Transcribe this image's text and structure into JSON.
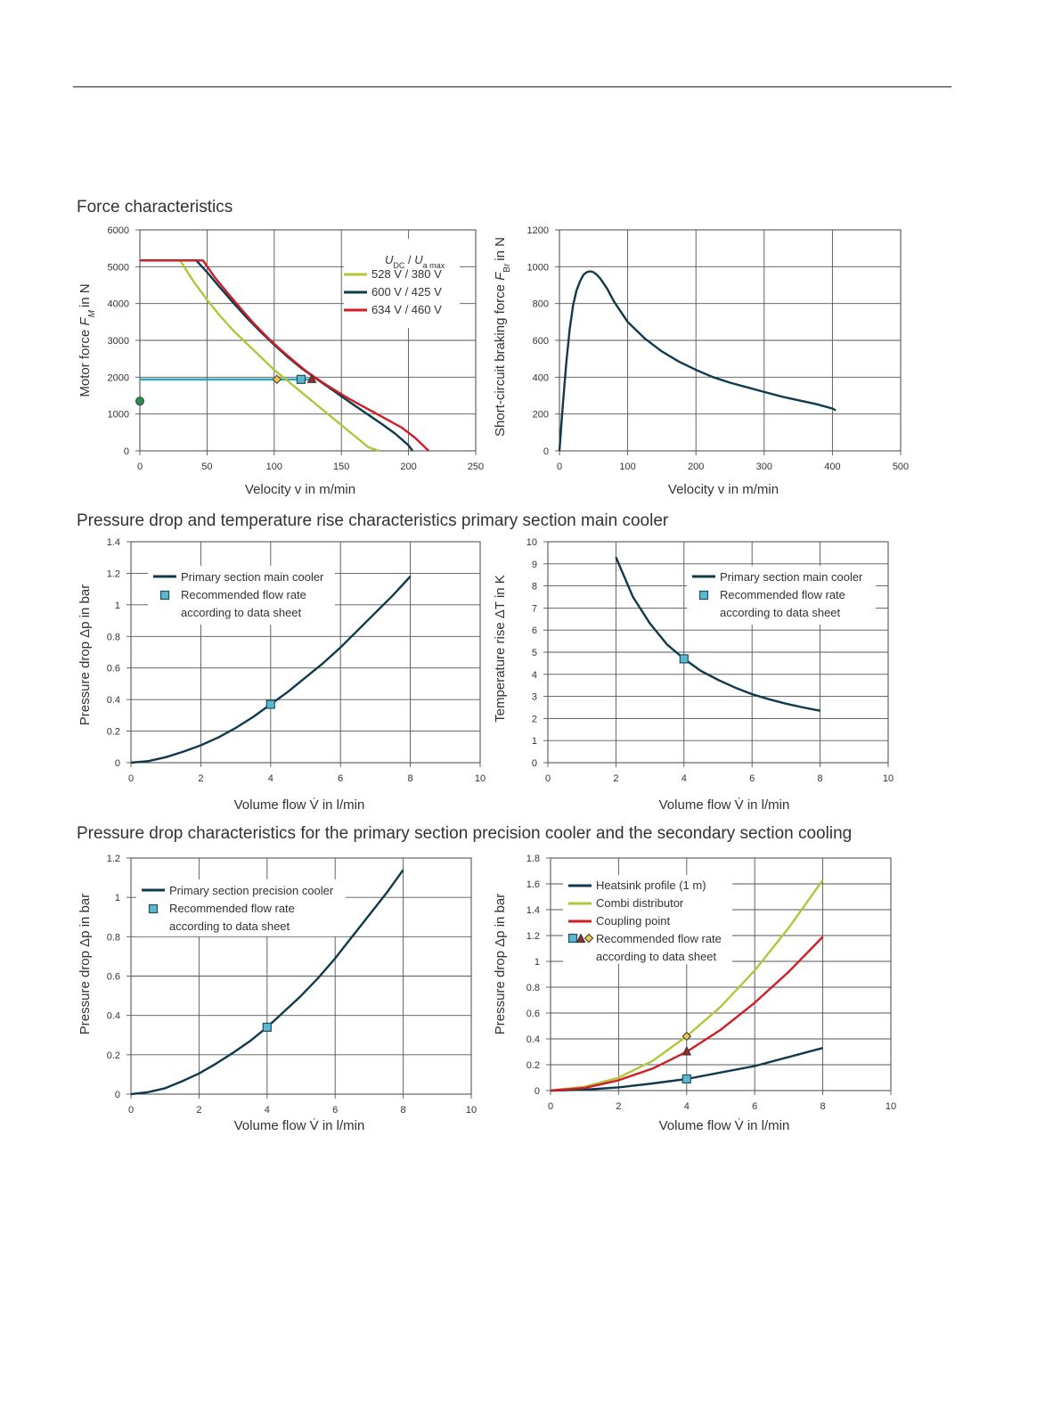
{
  "sections": {
    "force": "Force characteristics",
    "pressure_main": "Pressure drop and temperature rise characteristics primary section main cooler",
    "pressure_precision": "Pressure drop characteristics for the primary section precision cooler and the secondary section cooling"
  },
  "chart_data": [
    {
      "id": "motor-force",
      "type": "line",
      "xlabel": "Velocity v in m/min",
      "ylabel": "Motor force F_M in N",
      "xlim": [
        0,
        250
      ],
      "ylim": [
        0,
        6000
      ],
      "xticks": [
        "0",
        "50",
        "100",
        "150",
        "200",
        "250"
      ],
      "yticks": [
        "0",
        "1000",
        "2000",
        "3000",
        "4000",
        "5000",
        "6000"
      ],
      "grid": true,
      "legend_title": "U_DC / U_a max",
      "legend_position": "top-right",
      "series": [
        {
          "name": "528 V / 380 V",
          "color": "#b5c43c",
          "x": [
            0,
            30,
            40,
            50,
            60,
            70,
            80,
            90,
            100,
            110,
            120,
            130,
            140,
            150,
            160,
            170,
            178
          ],
          "y": [
            5170,
            5170,
            4600,
            4100,
            3650,
            3250,
            2900,
            2550,
            2200,
            1900,
            1600,
            1300,
            1000,
            700,
            400,
            100,
            0
          ],
          "marker": {
            "x": 102,
            "y": 1940,
            "shape": "diamond"
          }
        },
        {
          "name": "600 V / 425 V",
          "color": "#0f3a4e",
          "x": [
            0,
            42,
            50,
            60,
            70,
            80,
            90,
            100,
            110,
            120,
            130,
            140,
            150,
            160,
            170,
            180,
            190,
            200,
            203
          ],
          "y": [
            5170,
            5170,
            4850,
            4420,
            4000,
            3600,
            3230,
            2880,
            2550,
            2250,
            1990,
            1740,
            1480,
            1230,
            980,
            730,
            470,
            150,
            0
          ],
          "marker": {
            "x": 120,
            "y": 1940,
            "shape": "square"
          }
        },
        {
          "name": "634 V / 460 V",
          "color": "#d01c24",
          "x": [
            0,
            47,
            55,
            65,
            75,
            85,
            95,
            105,
            115,
            125,
            135,
            145,
            155,
            165,
            175,
            185,
            195,
            205,
            215
          ],
          "y": [
            5170,
            5170,
            4750,
            4300,
            3870,
            3450,
            3080,
            2740,
            2430,
            2130,
            1880,
            1650,
            1430,
            1230,
            1030,
            830,
            630,
            350,
            0
          ],
          "marker": {
            "x": 128,
            "y": 1940,
            "shape": "triangle"
          }
        }
      ],
      "annotations": [
        {
          "type": "hline",
          "y": 1940,
          "x_to": 128,
          "color": "#2aa8b8"
        },
        {
          "type": "point",
          "x": 0,
          "y": 1350,
          "color": "#2e8b4e"
        }
      ]
    },
    {
      "id": "braking-force",
      "type": "line",
      "xlabel": "Velocity v in m/min",
      "ylabel": "Short-circuit braking force F_Br in N",
      "xlim": [
        0,
        500
      ],
      "ylim": [
        0,
        1200
      ],
      "xticks": [
        "0",
        "100",
        "200",
        "300",
        "400",
        "500"
      ],
      "yticks": [
        "0",
        "200",
        "400",
        "600",
        "800",
        "1000",
        "1200"
      ],
      "grid": true,
      "series": [
        {
          "name": "",
          "color": "#0f3a4e",
          "x": [
            0,
            5,
            10,
            15,
            20,
            25,
            30,
            35,
            40,
            45,
            50,
            55,
            60,
            70,
            80,
            100,
            125,
            150,
            175,
            200,
            225,
            250,
            275,
            300,
            325,
            350,
            375,
            400,
            405
          ],
          "y": [
            0,
            250,
            480,
            660,
            790,
            870,
            920,
            955,
            970,
            975,
            970,
            955,
            935,
            880,
            810,
            700,
            610,
            540,
            485,
            440,
            400,
            370,
            345,
            320,
            295,
            275,
            255,
            230,
            220
          ]
        }
      ]
    },
    {
      "id": "pressure-main",
      "type": "line",
      "xlabel": "Volume flow V̇ in l/min",
      "ylabel": "Pressure drop Δp in bar",
      "xlim": [
        0,
        10
      ],
      "ylim": [
        0,
        1.4
      ],
      "xticks": [
        "0",
        "2",
        "4",
        "6",
        "8",
        "10"
      ],
      "yticks": [
        "0",
        "0.2",
        "0.4",
        "0.6",
        "0.8",
        "1",
        "1.2",
        "1.4"
      ],
      "grid": true,
      "legend": [
        "Primary section main cooler",
        "Recommended flow rate",
        "according to data sheet"
      ],
      "series": [
        {
          "name": "Primary section main cooler",
          "color": "#0f3a4e",
          "x": [
            0,
            0.5,
            1,
            1.5,
            2,
            2.5,
            3,
            3.5,
            4,
            4.5,
            5,
            5.5,
            6,
            6.5,
            7,
            7.5,
            8
          ],
          "y": [
            0,
            0.01,
            0.035,
            0.07,
            0.11,
            0.16,
            0.22,
            0.29,
            0.37,
            0.45,
            0.54,
            0.63,
            0.73,
            0.84,
            0.95,
            1.06,
            1.18
          ],
          "marker": {
            "x": 4,
            "y": 0.37,
            "shape": "square"
          }
        }
      ]
    },
    {
      "id": "temperature-main",
      "type": "line",
      "xlabel": "Volume flow V̇ in l/min",
      "ylabel": "Temperature rise ΔT in K",
      "xlim": [
        0,
        10
      ],
      "ylim": [
        0,
        10
      ],
      "xticks": [
        "0",
        "2",
        "4",
        "6",
        "8",
        "10"
      ],
      "yticks": [
        "0",
        "1",
        "2",
        "3",
        "4",
        "5",
        "6",
        "7",
        "8",
        "9",
        "10"
      ],
      "grid": true,
      "legend": [
        "Primary section main cooler",
        "Recommended flow rate",
        "according to data sheet"
      ],
      "series": [
        {
          "name": "Primary section main cooler",
          "color": "#0f3a4e",
          "x": [
            2,
            2.5,
            3,
            3.5,
            4,
            4.5,
            5,
            5.5,
            6,
            6.5,
            7,
            7.5,
            8
          ],
          "y": [
            9.3,
            7.5,
            6.3,
            5.35,
            4.7,
            4.15,
            3.75,
            3.4,
            3.1,
            2.87,
            2.67,
            2.5,
            2.35
          ],
          "marker": {
            "x": 4,
            "y": 4.7,
            "shape": "square"
          }
        }
      ]
    },
    {
      "id": "pressure-precision",
      "type": "line",
      "xlabel": "Volume flow V̇ in l/min",
      "ylabel": "Pressure drop Δp in bar",
      "xlim": [
        0,
        10
      ],
      "ylim": [
        0,
        1.2
      ],
      "xticks": [
        "0",
        "2",
        "4",
        "6",
        "8",
        "10"
      ],
      "yticks": [
        "0",
        "0.2",
        "0.4",
        "0.6",
        "0.8",
        "1",
        "1.2"
      ],
      "grid": true,
      "legend": [
        "Primary section precision cooler",
        "Recommended flow rate",
        "according to data sheet"
      ],
      "series": [
        {
          "name": "Primary section precision cooler",
          "color": "#0f3a4e",
          "x": [
            0,
            0.5,
            1,
            1.5,
            2,
            2.5,
            3,
            3.5,
            4,
            4.5,
            5,
            5.5,
            6,
            6.5,
            7,
            7.5,
            8
          ],
          "y": [
            0,
            0.01,
            0.03,
            0.065,
            0.105,
            0.155,
            0.21,
            0.27,
            0.34,
            0.42,
            0.5,
            0.59,
            0.69,
            0.8,
            0.91,
            1.02,
            1.14
          ],
          "marker": {
            "x": 4,
            "y": 0.34,
            "shape": "square"
          }
        }
      ]
    },
    {
      "id": "pressure-secondary",
      "type": "line",
      "xlabel": "Volume flow V̇ in l/min",
      "ylabel": "Pressure drop Δp in bar",
      "xlim": [
        0,
        10
      ],
      "ylim": [
        0,
        1.8
      ],
      "xticks": [
        "0",
        "2",
        "4",
        "6",
        "8",
        "10"
      ],
      "yticks": [
        "0",
        "0.2",
        "0.4",
        "0.6",
        "0.8",
        "1",
        "1.2",
        "1.4",
        "1.6",
        "1.8"
      ],
      "grid": true,
      "legend": [
        "Heatsink profile (1 m)",
        "Combi distributor",
        "Coupling point",
        "Recommended flow rate",
        "according to data sheet"
      ],
      "series": [
        {
          "name": "Heatsink profile (1 m)",
          "color": "#0f3a4e",
          "x": [
            0,
            1,
            2,
            3,
            4,
            5,
            6,
            7,
            8
          ],
          "y": [
            0,
            0.007,
            0.025,
            0.055,
            0.09,
            0.14,
            0.19,
            0.26,
            0.33
          ],
          "marker": {
            "x": 4,
            "y": 0.09,
            "shape": "square"
          }
        },
        {
          "name": "Combi distributor",
          "color": "#b5c43c",
          "x": [
            0,
            1,
            2,
            3,
            4,
            5,
            6,
            7,
            8
          ],
          "y": [
            0,
            0.03,
            0.1,
            0.23,
            0.42,
            0.65,
            0.93,
            1.26,
            1.63
          ],
          "marker": {
            "x": 4,
            "y": 0.42,
            "shape": "diamond"
          }
        },
        {
          "name": "Coupling point",
          "color": "#d01c24",
          "x": [
            0,
            1,
            2,
            3,
            4,
            5,
            6,
            7,
            8
          ],
          "y": [
            0,
            0.02,
            0.08,
            0.17,
            0.3,
            0.47,
            0.68,
            0.92,
            1.19
          ],
          "marker": {
            "x": 4,
            "y": 0.3,
            "shape": "triangle"
          }
        }
      ]
    }
  ]
}
